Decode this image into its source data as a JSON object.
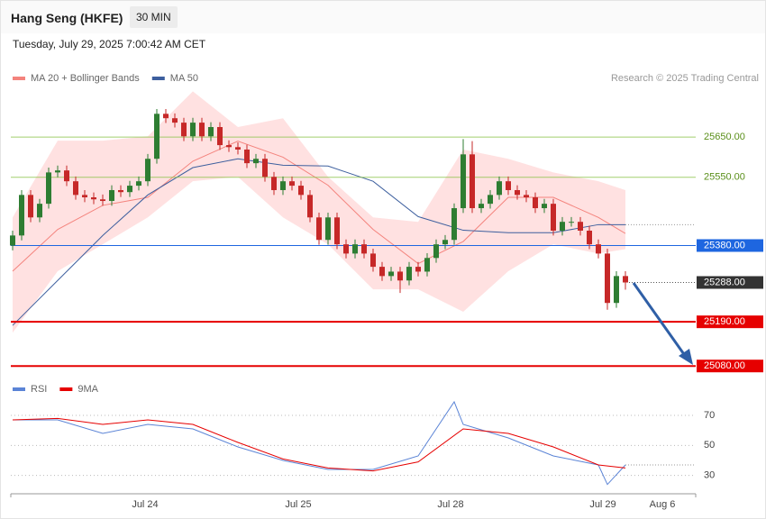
{
  "header": {
    "title": "Hang Seng (HKFE)",
    "interval": "30 MIN",
    "timestamp": "Tuesday, July 29, 2025 7:00:42 AM CET"
  },
  "chart_data": [
    {
      "type": "candlestick",
      "credit": "Research © 2025 Trading Central",
      "up_color": "#2e7d32",
      "down_color": "#c62828",
      "xlim": [
        -0.2,
        75.8
      ],
      "xticks": [
        {
          "value": 14.7,
          "label": "Jul 24"
        },
        {
          "value": 31.7,
          "label": "Jul 25"
        },
        {
          "value": 48.6,
          "label": "Jul 28"
        },
        {
          "value": 65.5,
          "label": "Jul 29"
        },
        {
          "value": 72.1,
          "label": "Aug 6"
        }
      ],
      "ylim": [
        25058,
        25776
      ],
      "open": [
        25380,
        25405,
        25506,
        25450,
        25484,
        25562,
        25567,
        25540,
        25506,
        25500,
        25495,
        25491,
        25518,
        25513,
        25529,
        25540,
        25596,
        25708,
        25697,
        25686,
        25652,
        25686,
        25652,
        25675,
        25630,
        25625,
        25619,
        25585,
        25596,
        25551,
        25518,
        25540,
        25529,
        25506,
        25450,
        25394,
        25450,
        25383,
        25360,
        25383,
        25360,
        25327,
        25304,
        25315,
        25293,
        25327,
        25315,
        25349,
        25383,
        25394,
        25473,
        25607,
        25473,
        25484,
        25506,
        25540,
        25518,
        25506,
        25500,
        25473,
        25484,
        25417,
        25439,
        25439,
        25417,
        25383,
        25360,
        25237,
        25304
      ],
      "high": [
        25417,
        25518,
        25518,
        25496,
        25574,
        25579,
        25579,
        25552,
        25518,
        25512,
        25507,
        25530,
        25530,
        25541,
        25552,
        25608,
        25720,
        25720,
        25709,
        25698,
        25698,
        25698,
        25687,
        25687,
        25642,
        25637,
        25631,
        25608,
        25608,
        25563,
        25552,
        25552,
        25541,
        25518,
        25462,
        25462,
        25462,
        25395,
        25395,
        25395,
        25372,
        25339,
        25327,
        25327,
        25339,
        25339,
        25361,
        25395,
        25406,
        25485,
        25645,
        25640,
        25496,
        25518,
        25552,
        25552,
        25530,
        25518,
        25512,
        25496,
        25496,
        25451,
        25451,
        25451,
        25429,
        25395,
        25372,
        25316,
        25316
      ],
      "low": [
        25368,
        25393,
        25438,
        25438,
        25472,
        25550,
        25528,
        25494,
        25488,
        25483,
        25479,
        25479,
        25501,
        25501,
        25517,
        25528,
        25584,
        25685,
        25674,
        25640,
        25640,
        25640,
        25640,
        25618,
        25613,
        25607,
        25573,
        25573,
        25539,
        25506,
        25506,
        25517,
        25494,
        25438,
        25382,
        25382,
        25371,
        25348,
        25348,
        25348,
        25315,
        25292,
        25292,
        25262,
        25281,
        25303,
        25303,
        25337,
        25371,
        25382,
        25461,
        25461,
        25461,
        25472,
        25494,
        25506,
        25494,
        25488,
        25461,
        25461,
        25405,
        25405,
        25427,
        25405,
        25371,
        25348,
        25220,
        25225,
        25270
      ],
      "close": [
        25405,
        25506,
        25450,
        25484,
        25562,
        25567,
        25540,
        25506,
        25500,
        25495,
        25491,
        25518,
        25513,
        25529,
        25540,
        25596,
        25708,
        25697,
        25686,
        25652,
        25686,
        25652,
        25675,
        25630,
        25625,
        25619,
        25585,
        25596,
        25551,
        25518,
        25540,
        25529,
        25506,
        25450,
        25394,
        25450,
        25383,
        25360,
        25383,
        25360,
        25327,
        25304,
        25315,
        25293,
        25327,
        25315,
        25349,
        25383,
        25394,
        25473,
        25607,
        25473,
        25484,
        25506,
        25540,
        25518,
        25506,
        25500,
        25473,
        25484,
        25417,
        25439,
        25439,
        25417,
        25383,
        25360,
        25237,
        25304,
        25288
      ],
      "series": [
        {
          "name": "MA 20 + Bollinger Bands",
          "color": "#f4837d",
          "band_color": "#ffe1e1",
          "x": [
            0,
            5,
            10,
            15,
            20,
            25,
            30,
            35,
            40,
            45,
            50,
            55,
            60,
            65,
            68
          ],
          "values": [
            25316,
            25420,
            25480,
            25500,
            25590,
            25640,
            25600,
            25530,
            25420,
            25335,
            25390,
            25500,
            25500,
            25450,
            25410
          ],
          "upper": [
            25450,
            25641,
            25641,
            25652,
            25764,
            25675,
            25697,
            25551,
            25450,
            25439,
            25619,
            25596,
            25562,
            25540,
            25518
          ],
          "lower": [
            25163,
            25316,
            25383,
            25450,
            25540,
            25551,
            25450,
            25383,
            25271,
            25271,
            25215,
            25316,
            25383,
            25360,
            25371
          ]
        },
        {
          "name": "MA 50",
          "color": "#3d5f9e",
          "x": [
            0,
            5,
            10,
            15,
            20,
            25,
            30,
            35,
            40,
            45,
            50,
            55,
            60,
            65,
            68
          ],
          "values": [
            25181,
            25293,
            25405,
            25506,
            25574,
            25596,
            25580,
            25578,
            25540,
            25452,
            25418,
            25412,
            25412,
            25432,
            25432
          ]
        }
      ],
      "levels": [
        {
          "value": 25650,
          "label": "25650.00",
          "color": "#8bc34a",
          "style": "line",
          "tag": "text"
        },
        {
          "value": 25550,
          "label": "25550.00",
          "color": "#8bc34a",
          "style": "line",
          "tag": "text"
        },
        {
          "value": 25380,
          "label": "25380.00",
          "color": "#1e66e0",
          "style": "line",
          "tag": "box"
        },
        {
          "value": 25288,
          "label": "25288.00",
          "color": "#333333",
          "style": "dotted",
          "tag": "box"
        },
        {
          "value": 25190,
          "label": "25190.00",
          "color": "#e60000",
          "style": "thick",
          "tag": "box"
        },
        {
          "value": 25080,
          "label": "25080.00",
          "color": "#e60000",
          "style": "thick",
          "tag": "box"
        }
      ]
    },
    {
      "type": "line",
      "ylim": [
        19,
        82
      ],
      "yticks": [
        70,
        50,
        30
      ],
      "series": [
        {
          "name": "RSI",
          "color": "#5b84d6",
          "x": [
            0,
            5,
            10,
            15,
            20,
            25,
            30,
            35,
            40,
            45,
            49,
            50,
            55,
            60,
            65,
            66,
            68
          ],
          "values": [
            67,
            67,
            58,
            64,
            61,
            49,
            40,
            34,
            34,
            43,
            79,
            64,
            55,
            43,
            37,
            24,
            37
          ]
        },
        {
          "name": "9MA",
          "color": "#e60000",
          "x": [
            0,
            5,
            10,
            15,
            20,
            25,
            30,
            35,
            40,
            45,
            50,
            55,
            60,
            65,
            68
          ],
          "values": [
            67,
            68,
            64,
            67,
            64,
            52,
            41,
            35,
            33,
            39,
            61,
            58,
            49,
            37,
            35
          ]
        }
      ]
    }
  ]
}
